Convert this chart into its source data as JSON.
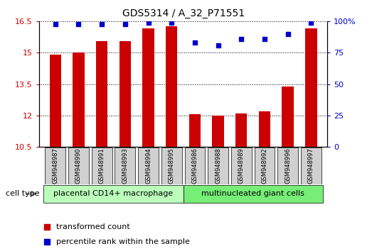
{
  "title": "GDS5314 / A_32_P71551",
  "samples": [
    "GSM948987",
    "GSM948990",
    "GSM948991",
    "GSM948993",
    "GSM948994",
    "GSM948995",
    "GSM948986",
    "GSM948988",
    "GSM948989",
    "GSM948992",
    "GSM948996",
    "GSM948997"
  ],
  "bar_values": [
    14.9,
    15.0,
    15.55,
    15.57,
    16.15,
    16.25,
    12.05,
    12.0,
    12.1,
    12.2,
    13.4,
    16.15
  ],
  "percentile_values": [
    98,
    98,
    98,
    98,
    99,
    99,
    83,
    81,
    86,
    86,
    90,
    99
  ],
  "bar_color": "#cc0000",
  "percentile_color": "#0000cc",
  "ylim_left": [
    10.5,
    16.5
  ],
  "ylim_right": [
    0,
    100
  ],
  "yticks_left": [
    10.5,
    12.0,
    13.5,
    15.0,
    16.5
  ],
  "yticks_right": [
    0,
    25,
    50,
    75,
    100
  ],
  "ytick_labels_left": [
    "10.5",
    "12",
    "13.5",
    "15",
    "16.5"
  ],
  "ytick_labels_right": [
    "0",
    "25",
    "50",
    "75",
    "100%"
  ],
  "group1_label": "placental CD14+ macrophage",
  "group2_label": "multinucleated giant cells",
  "group1_count": 6,
  "group2_count": 6,
  "group1_color": "#bbffbb",
  "group2_color": "#77ee77",
  "cell_type_label": "cell type",
  "legend1_label": "transformed count",
  "legend2_label": "percentile rank within the sample",
  "bar_width": 0.5
}
